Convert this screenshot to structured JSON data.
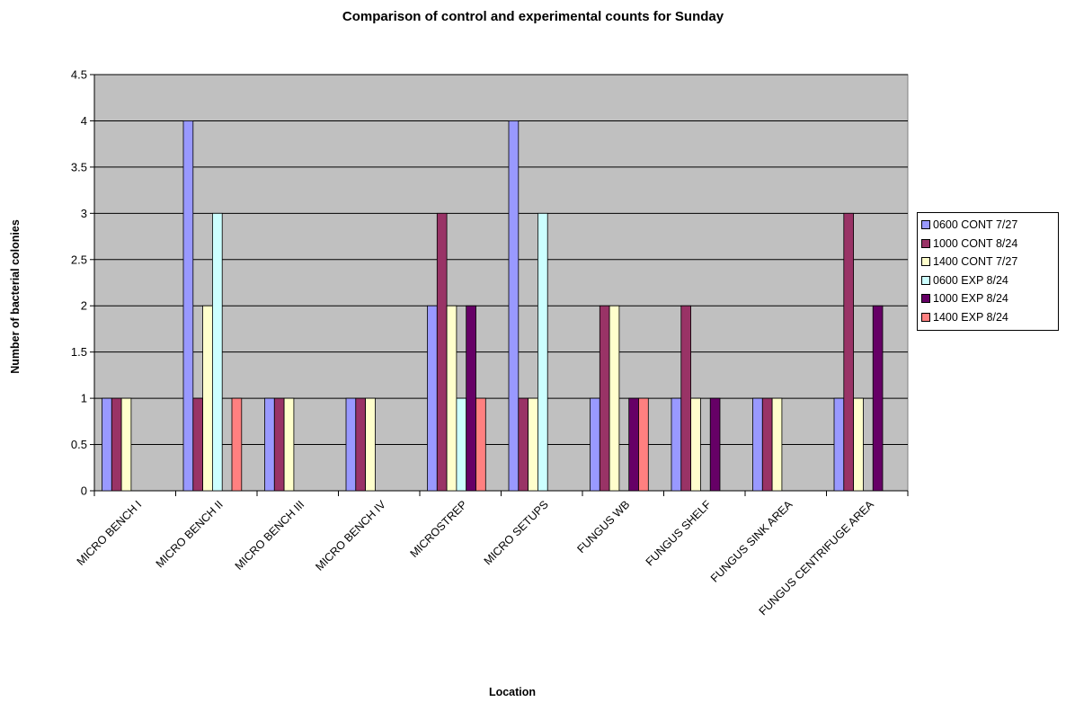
{
  "chart_data": {
    "type": "bar",
    "title": "Comparison of control and experimental counts for Sunday",
    "xlabel": "Location",
    "ylabel": "Number of bacterial colonies",
    "ylim": [
      0,
      4.5
    ],
    "yticks": [
      "0",
      "0.5",
      "1",
      "1.5",
      "2",
      "2.5",
      "3",
      "3.5",
      "4",
      "4.5"
    ],
    "grid": true,
    "legend_position": "right",
    "categories": [
      "MICRO BENCH I",
      "MICRO BENCH II",
      "MICRO BENCH III",
      "MICRO BENCH IV",
      "MICROSTREP",
      "MICRO SETUPS",
      "FUNGUS WB",
      "FUNGUS SHELF",
      "FUNGUS SINK AREA",
      "FUNGUS CENTRIFUGE AREA"
    ],
    "series": [
      {
        "name": "0600 CONT 7/27",
        "color": "#9999ff",
        "values": [
          1,
          4,
          1,
          1,
          2,
          4,
          1,
          1,
          1,
          1
        ]
      },
      {
        "name": "1000 CONT 8/24",
        "color": "#993366",
        "values": [
          1,
          1,
          1,
          1,
          3,
          1,
          2,
          2,
          1,
          3
        ]
      },
      {
        "name": "1400 CONT 7/27",
        "color": "#ffffcc",
        "values": [
          1,
          2,
          1,
          1,
          2,
          1,
          2,
          1,
          1,
          1
        ]
      },
      {
        "name": "0600 EXP 8/24",
        "color": "#ccffff",
        "values": [
          0,
          3,
          0,
          0,
          1,
          3,
          0,
          0,
          0,
          0
        ]
      },
      {
        "name": "1000 EXP 8/24",
        "color": "#660066",
        "values": [
          0,
          0,
          0,
          0,
          2,
          0,
          1,
          1,
          0,
          2
        ]
      },
      {
        "name": "1400 EXP 8/24",
        "color": "#ff8080",
        "values": [
          0,
          1,
          0,
          0,
          1,
          0,
          1,
          0,
          0,
          0
        ]
      }
    ],
    "plot_background": "#c0c0c0"
  }
}
